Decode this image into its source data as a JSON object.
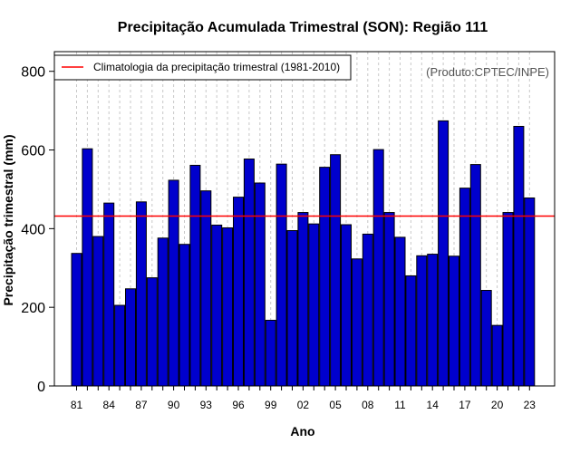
{
  "colors": {
    "bar_fill": "#0000cd",
    "bar_stroke": "#000000",
    "reference_line": "#ff0000",
    "grid": "#c8c8c8",
    "credit": "#555555"
  },
  "chart_data": {
    "type": "bar",
    "title": "Precipitação Acumulada Trimestral (SON): Região 111",
    "xlabel": "Ano",
    "ylabel": "Precipitação trimestral (mm)",
    "ylim": [
      0,
      850
    ],
    "yticks": [
      0,
      200,
      400,
      600,
      800
    ],
    "categories": [
      "81",
      "82",
      "83",
      "84",
      "85",
      "86",
      "87",
      "88",
      "89",
      "90",
      "91",
      "92",
      "93",
      "94",
      "95",
      "96",
      "97",
      "98",
      "99",
      "00",
      "01",
      "02",
      "03",
      "04",
      "05",
      "06",
      "07",
      "08",
      "09",
      "10",
      "11",
      "12",
      "13",
      "14",
      "15",
      "16",
      "17",
      "18",
      "19",
      "20",
      "21",
      "22",
      "23"
    ],
    "xtick_labels": [
      "81",
      "84",
      "87",
      "90",
      "93",
      "96",
      "99",
      "02",
      "05",
      "08",
      "11",
      "14",
      "17",
      "20",
      "23"
    ],
    "series": [
      {
        "name": "Precipitação trimestral",
        "values": [
          337,
          603,
          380,
          465,
          205,
          247,
          468,
          275,
          376,
          523,
          360,
          561,
          496,
          409,
          402,
          480,
          577,
          516,
          167,
          564,
          395,
          441,
          412,
          556,
          588,
          410,
          323,
          386,
          601,
          441,
          378,
          280,
          331,
          335,
          674,
          330,
          503,
          563,
          243,
          154,
          441,
          660,
          478
        ]
      }
    ],
    "reference_line": {
      "label": "Climatologia da precipitação trimestral (1981-2010)",
      "value": 432
    },
    "grid": "vertical dashed at each year",
    "legend_position": "top-left",
    "credit": "(Produto:CPTEC/INPE)"
  }
}
